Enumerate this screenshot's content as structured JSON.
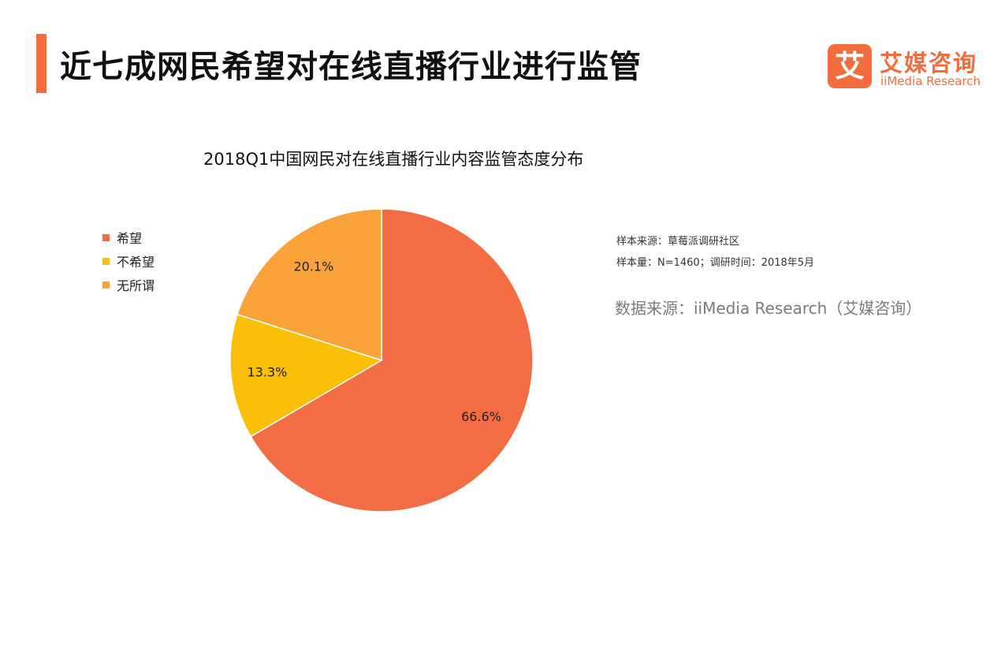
{
  "header": {
    "title": "近七成网民希望对在线直播行业进行监管",
    "accent_color": "#f36c3d"
  },
  "logo": {
    "mark": "艾",
    "cn": "艾媒咨询",
    "en": "iiMedia Research"
  },
  "notes": {
    "sample_source": "样本来源：草莓派调研社区",
    "sample_size": "样本量：N=1460；调研时间：2018年5月",
    "data_source": "数据来源：iiMedia Research（艾媒咨询）"
  },
  "chart_data": {
    "type": "pie",
    "title": "2018Q1中国网民对在线直播行业内容监管态度分布",
    "legend_position": "left",
    "slices": [
      {
        "label": "希望",
        "value": 66.6,
        "display": "66.6%",
        "color": "#f36c43"
      },
      {
        "label": "不希望",
        "value": 13.3,
        "display": "13.3%",
        "color": "#fbbf07"
      },
      {
        "label": "无所谓",
        "value": 20.1,
        "display": "20.1%",
        "color": "#f9a23a"
      }
    ]
  }
}
